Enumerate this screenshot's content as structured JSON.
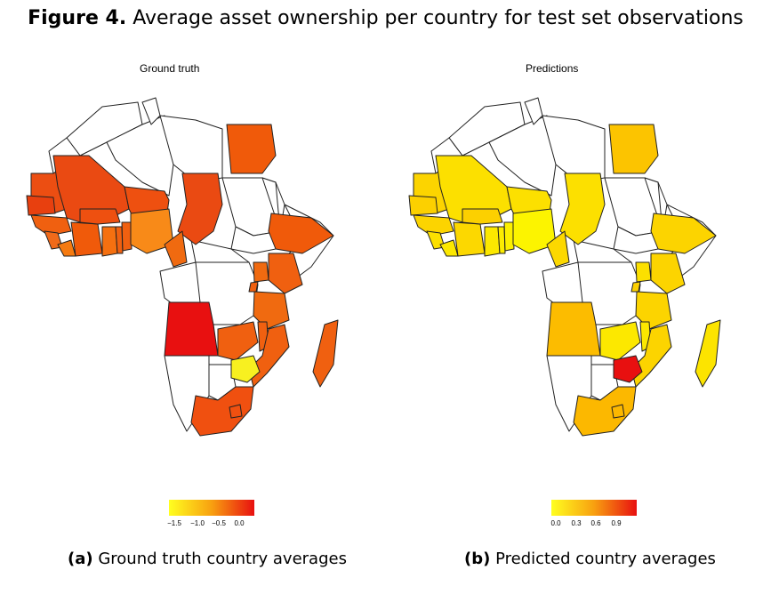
{
  "figure": {
    "label": "Figure 4.",
    "title": "Average asset ownership per country for test set observations"
  },
  "panels": [
    {
      "title": "Ground truth",
      "caption_label": "(a)",
      "caption": "Ground truth country averages",
      "legend_ticks": [
        "−1.5",
        "−1.0",
        "−0.5",
        "0.0"
      ],
      "colors": {
        "egypt": "#f05a0a",
        "mali": "#ea4a12",
        "niger": "#ee5010",
        "mauritania": "#ec4e12",
        "senegal": "#e8400f",
        "guinea": "#f06010",
        "sierra-leone": "#f06a1a",
        "liberia": "#f57a10",
        "cote-divoire": "#f05a0a",
        "burkina-faso": "#ee5010",
        "ghana": "#f57010",
        "togo": "#f06010",
        "benin": "#f06010",
        "nigeria": "#f88a18",
        "cameroon": "#f06a10",
        "chad": "#ea4a12",
        "ethiopia": "#f05a0a",
        "kenya": "#f06010",
        "uganda": "#f06a10",
        "rwanda": "#f06010",
        "tanzania": "#f06a10",
        "angola": "#e81010",
        "zambia": "#f06010",
        "malawi": "#f06010",
        "mozambique": "#f06010",
        "zimbabwe": "#f8f020",
        "namibia": "#ffffff",
        "south-africa": "#f05010",
        "lesotho": "#f05010",
        "madagascar": "#f06010"
      }
    },
    {
      "title": "Predictions",
      "caption_label": "(b)",
      "caption": "Predicted country averages",
      "legend_ticks": [
        "0.0",
        "0.3",
        "0.6",
        "0.9"
      ],
      "colors": {
        "egypt": "#fcc400",
        "mali": "#fce000",
        "niger": "#fce000",
        "mauritania": "#fcd400",
        "senegal": "#fcd000",
        "guinea": "#fcd400",
        "sierra-leone": "#fce000",
        "liberia": "#fce800",
        "cote-divoire": "#fcd800",
        "burkina-faso": "#fcd000",
        "ghana": "#fce800",
        "togo": "#fcec00",
        "benin": "#fcf000",
        "nigeria": "#fcf400",
        "cameroon": "#fcd800",
        "chad": "#fce000",
        "ethiopia": "#fcd400",
        "kenya": "#fcd400",
        "uganda": "#fce000",
        "rwanda": "#fcd000",
        "tanzania": "#fcd400",
        "angola": "#fcbc00",
        "zambia": "#fce800",
        "malawi": "#fce800",
        "mozambique": "#fcd400",
        "zimbabwe": "#e81010",
        "namibia": "#ffffff",
        "south-africa": "#fcb800",
        "lesotho": "#fcb800",
        "madagascar": "#fce400"
      }
    }
  ]
}
